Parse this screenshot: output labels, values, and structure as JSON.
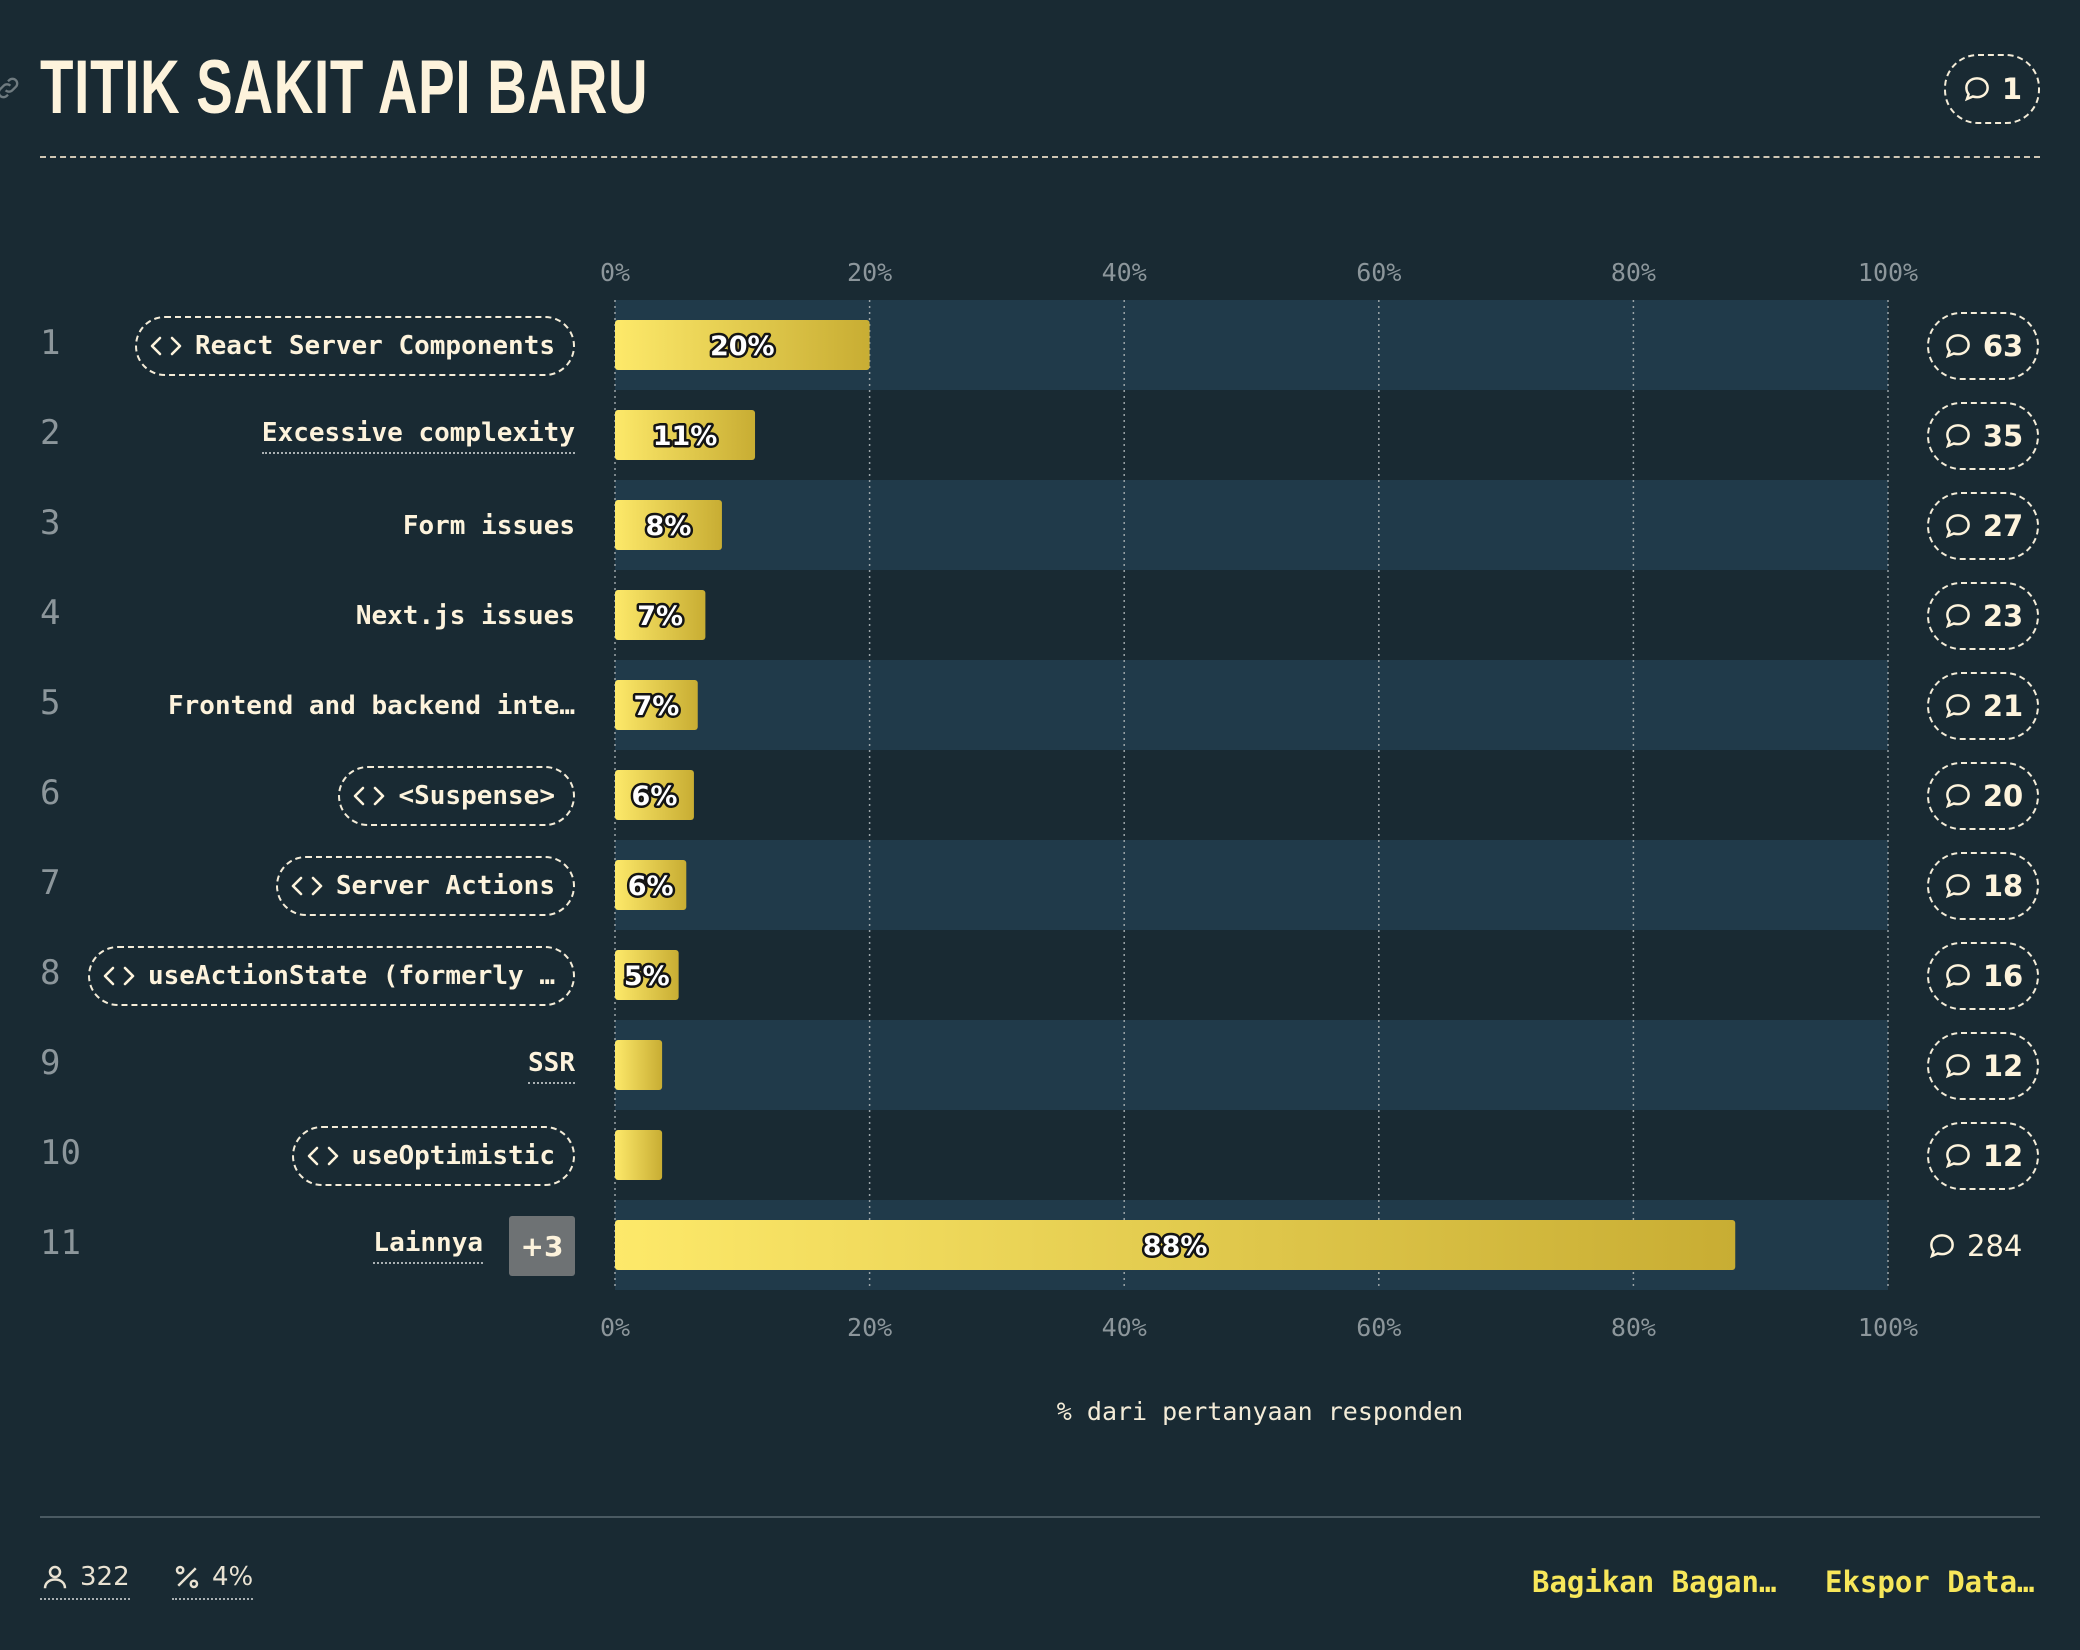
{
  "header": {
    "title": "TITIK SAKIT API BARU",
    "comment_count": "1"
  },
  "chart_data": {
    "type": "bar",
    "orientation": "horizontal",
    "title": "TITIK SAKIT API BARU",
    "xlabel": "% dari pertanyaan responden",
    "xlim": [
      0,
      100
    ],
    "x_ticks": [
      "0%",
      "20%",
      "40%",
      "60%",
      "80%",
      "100%"
    ],
    "grid": true,
    "rows": [
      {
        "rank": "1",
        "label": "React Server Components",
        "kind": "tech",
        "value": 20,
        "value_label": "20%",
        "comments": "63"
      },
      {
        "rank": "2",
        "label": "Excessive complexity",
        "kind": "plain",
        "value": 11,
        "value_label": "11%",
        "comments": "35"
      },
      {
        "rank": "3",
        "label": "Form issues",
        "kind": "text",
        "value": 8.4,
        "value_label": "8%",
        "comments": "27"
      },
      {
        "rank": "4",
        "label": "Next.js issues",
        "kind": "text",
        "value": 7.1,
        "value_label": "7%",
        "comments": "23"
      },
      {
        "rank": "5",
        "label": "Frontend and backend inte…",
        "kind": "text",
        "value": 6.5,
        "value_label": "7%",
        "comments": "21"
      },
      {
        "rank": "6",
        "label": "<Suspense>",
        "kind": "tech",
        "value": 6.2,
        "value_label": "6%",
        "comments": "20"
      },
      {
        "rank": "7",
        "label": "Server Actions",
        "kind": "tech",
        "value": 5.6,
        "value_label": "6%",
        "comments": "18"
      },
      {
        "rank": "8",
        "label": "useActionState (formerly …",
        "kind": "tech",
        "value": 5.0,
        "value_label": "5%",
        "comments": "16"
      },
      {
        "rank": "9",
        "label": "SSR",
        "kind": "plain",
        "value": 3.7,
        "value_label": "",
        "comments": "12"
      },
      {
        "rank": "10",
        "label": "useOptimistic",
        "kind": "tech",
        "value": 3.7,
        "value_label": "",
        "comments": "12"
      },
      {
        "rank": "11",
        "label": "Lainnya",
        "kind": "more",
        "more": "+3",
        "value": 88,
        "value_label": "88%",
        "comments": "284"
      }
    ]
  },
  "footer": {
    "respondents": "322",
    "percent": "4%",
    "share_label": "Bagikan Bagan…",
    "export_label": "Ekspor Data…"
  },
  "colors": {
    "background": "#192a33",
    "band": "#203a4a",
    "bar_start": "#fde96a",
    "bar_end": "#c8ad33",
    "accent_link": "#f7e75a"
  }
}
